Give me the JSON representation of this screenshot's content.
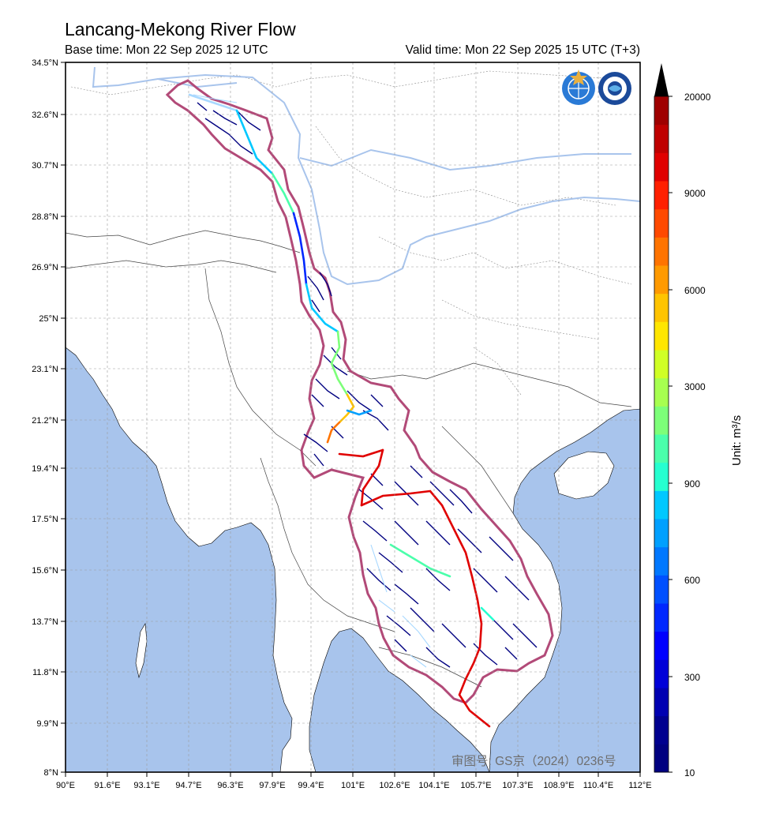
{
  "header": {
    "title": "Lancang-Mekong River Flow",
    "base_time": "Base time: Mon 22 Sep 2025 12 UTC",
    "valid_time": "Valid time: Mon 22 Sep 2025 15 UTC (T+3)"
  },
  "axes": {
    "lat_labels": [
      "34.5°N",
      "32.6°N",
      "30.7°N",
      "28.8°N",
      "26.9°N",
      "25°N",
      "23.1°N",
      "21.2°N",
      "19.4°N",
      "17.5°N",
      "15.6°N",
      "13.7°N",
      "11.8°N",
      "9.9°N",
      "8°N"
    ],
    "lon_labels": [
      "90°E",
      "91.6°E",
      "93.1°E",
      "94.7°E",
      "96.3°E",
      "97.9°E",
      "99.4°E",
      "101°E",
      "102.6°E",
      "104.1°E",
      "105.7°E",
      "107.3°E",
      "108.9°E",
      "110.4°E",
      "112°E"
    ]
  },
  "colorbar": {
    "labels": [
      "20000",
      "9000",
      "6000",
      "3000",
      "900",
      "600",
      "300",
      "10"
    ],
    "unit_label": "Unit: m³/s",
    "colors": [
      "#000080",
      "#00008f",
      "#0000b2",
      "#0000d8",
      "#0000ff",
      "#0028ff",
      "#0050ff",
      "#0078ff",
      "#00a0ff",
      "#00c8ff",
      "#26ffd0",
      "#4bffab",
      "#7dff79",
      "#a7ff50",
      "#d0ff26",
      "#ffe600",
      "#ffc400",
      "#ff9a00",
      "#ff7400",
      "#ff4a00",
      "#ff2000",
      "#e00000",
      "#bf0000",
      "#9f0000"
    ]
  },
  "map": {
    "ocean_color": "#a8c4ec",
    "basin_outline_color": "#b24a78",
    "logos": [
      "wmo-logo",
      "cma-logo"
    ]
  },
  "watermark": "审图号: GS京（2024）0236号"
}
